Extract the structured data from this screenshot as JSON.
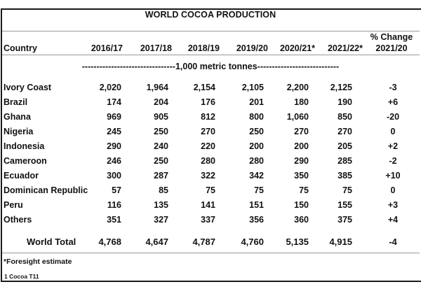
{
  "title": "WORLD COCOA PRODUCTION",
  "columns": {
    "country": "Country",
    "years": [
      "2016/17",
      "2017/18",
      "2018/19",
      "2019/20",
      "2020/21*",
      "2021/22*"
    ],
    "change_line1": "% Change",
    "change_line2": "2021/20"
  },
  "units": "--------------------------------1,000 metric tonnes----------------------------",
  "rows": [
    {
      "country": "Ivory Coast",
      "values": [
        "2,020",
        "1,964",
        "2,154",
        "2,105",
        "2,200",
        "2,125"
      ],
      "change": "-3"
    },
    {
      "country": "Brazil",
      "values": [
        "174",
        "204",
        "176",
        "201",
        "180",
        "190"
      ],
      "change": "+6"
    },
    {
      "country": "Ghana",
      "values": [
        "969",
        "905",
        "812",
        "800",
        "1,060",
        "850"
      ],
      "change": "-20"
    },
    {
      "country": "Nigeria",
      "values": [
        "245",
        "250",
        "270",
        "250",
        "270",
        "270"
      ],
      "change": "0"
    },
    {
      "country": "Indonesia",
      "values": [
        "290",
        "240",
        "220",
        "200",
        "200",
        "205"
      ],
      "change": "+2"
    },
    {
      "country": "Cameroon",
      "values": [
        "246",
        "250",
        "280",
        "280",
        "290",
        "285"
      ],
      "change": "-2"
    },
    {
      "country": "Ecuador",
      "values": [
        "300",
        "287",
        "322",
        "342",
        "350",
        "385"
      ],
      "change": "+10"
    },
    {
      "country": "Dominican Republic",
      "values": [
        "57",
        "85",
        "75",
        "75",
        "75",
        "75"
      ],
      "change": "0"
    },
    {
      "country": "Peru",
      "values": [
        "116",
        "135",
        "141",
        "151",
        "150",
        "155"
      ],
      "change": "+3"
    },
    {
      "country": "Others",
      "values": [
        "351",
        "327",
        "337",
        "356",
        "360",
        "375"
      ],
      "change": "+4"
    }
  ],
  "total": {
    "label": "World Total",
    "values": [
      "4,768",
      "4,647",
      "4,787",
      "4,760",
      "5,135",
      "4,915"
    ],
    "change": "-4"
  },
  "footnote": "*Foresight estimate",
  "source": "1 Cocoa T11"
}
